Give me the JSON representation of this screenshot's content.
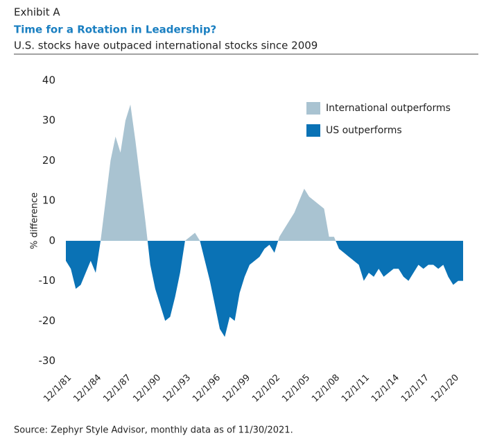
{
  "chart_data": {
    "type": "area",
    "header": "Exhibit A",
    "title": "Time for a Rotation in Leadership?",
    "subtitle": "U.S. stocks have outpaced international stocks since 2009",
    "y_label": "% difference",
    "source": "Source: Zephyr Style Advisor, monthly data as of 11/30/2021.",
    "series": [
      {
        "name": "International outperforms",
        "color": "#a9c3d1"
      },
      {
        "name": "US outperforms",
        "color": "#0a72b5"
      }
    ],
    "legend": "upper right",
    "x": [
      "1981-12-01",
      "1982-06-01",
      "1982-12-01",
      "1983-06-01",
      "1983-12-01",
      "1984-06-01",
      "1984-12-01",
      "1985-06-01",
      "1985-12-01",
      "1986-06-01",
      "1986-12-01",
      "1987-06-01",
      "1987-12-01",
      "1988-06-01",
      "1988-12-01",
      "1989-06-01",
      "1989-12-01",
      "1990-06-01",
      "1990-12-01",
      "1991-06-01",
      "1991-12-01",
      "1992-06-01",
      "1992-12-01",
      "1993-06-01",
      "1993-12-01",
      "1994-06-01",
      "1994-12-01",
      "1995-06-01",
      "1995-12-01",
      "1996-06-01",
      "1996-12-01",
      "1997-06-01",
      "1997-12-01",
      "1998-06-01",
      "1998-12-01",
      "1999-06-01",
      "1999-12-01",
      "2000-06-01",
      "2000-12-01",
      "2001-06-01",
      "2001-12-01",
      "2002-06-01",
      "2002-12-01",
      "2003-06-01",
      "2003-12-01",
      "2004-06-01",
      "2004-12-01",
      "2005-06-01",
      "2005-12-01",
      "2006-06-01",
      "2006-12-01",
      "2007-06-01",
      "2007-12-01",
      "2008-06-01",
      "2008-12-01",
      "2009-06-01",
      "2009-12-01",
      "2010-06-01",
      "2010-12-01",
      "2011-06-01",
      "2011-12-01",
      "2012-06-01",
      "2012-12-01",
      "2013-06-01",
      "2013-12-01",
      "2014-06-01",
      "2014-12-01",
      "2015-06-01",
      "2015-12-01",
      "2016-06-01",
      "2016-12-01",
      "2017-06-01",
      "2017-12-01",
      "2018-06-01",
      "2018-12-01",
      "2019-06-01",
      "2019-12-01",
      "2020-06-01",
      "2020-12-01",
      "2021-06-01",
      "2021-11-30"
    ],
    "values": [
      -5,
      -7,
      -12,
      -11,
      -8,
      -5,
      -8,
      0,
      10,
      20,
      26,
      22,
      30,
      34,
      25,
      15,
      5,
      -6,
      -12,
      -16,
      -20,
      -19,
      -14,
      -8,
      0,
      1,
      2,
      0,
      -5,
      -10,
      -16,
      -22,
      -24,
      -19,
      -20,
      -13,
      -9,
      -6,
      -5,
      -4,
      -2,
      -1,
      -3,
      1,
      3,
      5,
      7,
      10,
      13,
      11,
      10,
      9,
      8,
      1,
      1,
      -2,
      -3,
      -4,
      -5,
      -6,
      -10,
      -8,
      -9,
      -7,
      -9,
      -8,
      -7,
      -7,
      -9,
      -10,
      -8,
      -6,
      -7,
      -6,
      -6,
      -7,
      -6,
      -9,
      -11,
      -10,
      -10
    ],
    "xlim": [
      "1981-12-01",
      "2021-11-30"
    ],
    "xticks": [
      {
        "value": "1981-12-01",
        "label": "12/1/81"
      },
      {
        "value": "1984-12-01",
        "label": "12/1/84"
      },
      {
        "value": "1987-12-01",
        "label": "12/1/87"
      },
      {
        "value": "1990-12-01",
        "label": "12/1/90"
      },
      {
        "value": "1993-12-01",
        "label": "12/1/93"
      },
      {
        "value": "1996-12-01",
        "label": "12/1/96"
      },
      {
        "value": "1999-12-01",
        "label": "12/1/99"
      },
      {
        "value": "2002-12-01",
        "label": "12/1/02"
      },
      {
        "value": "2005-12-01",
        "label": "12/1/05"
      },
      {
        "value": "2008-12-01",
        "label": "12/1/08"
      },
      {
        "value": "2011-12-01",
        "label": "12/1/11"
      },
      {
        "value": "2014-12-01",
        "label": "12/1/14"
      },
      {
        "value": "2017-12-01",
        "label": "12/1/17"
      },
      {
        "value": "2020-12-01",
        "label": "12/1/20"
      }
    ],
    "ylim": [
      -30,
      40
    ],
    "yticks": [
      -30,
      -20,
      -10,
      0,
      10,
      20,
      30,
      40
    ]
  }
}
